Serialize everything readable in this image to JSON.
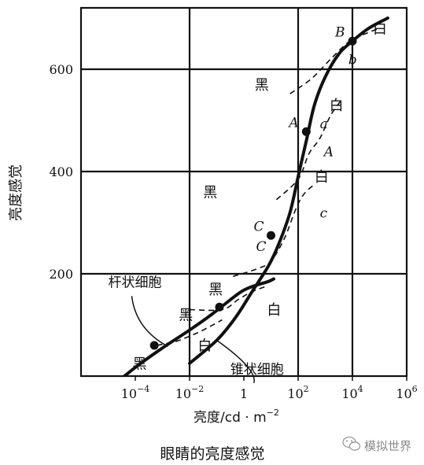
{
  "chart_data": {
    "type": "line",
    "title": "",
    "xlabel": "亮度/cd · m",
    "xlabel_exponent": "−2",
    "ylabel": "亮度感觉",
    "x_scale": "log10",
    "xlim_log10": [
      -6,
      6
    ],
    "ylim": [
      0,
      720
    ],
    "grid": true,
    "x_ticks": [
      {
        "log10": -4,
        "base": "10",
        "exp": "−4"
      },
      {
        "log10": -2,
        "base": "10",
        "exp": "−2"
      },
      {
        "log10": 0,
        "label": "1"
      },
      {
        "log10": 2,
        "base": "10",
        "exp": "2"
      },
      {
        "log10": 4,
        "base": "10",
        "exp": "4"
      },
      {
        "log10": 6,
        "base": "10",
        "exp": "6"
      }
    ],
    "y_ticks": [
      {
        "value": 200,
        "label": "200"
      },
      {
        "value": 400,
        "label": "400"
      },
      {
        "value": 600,
        "label": "600"
      }
    ],
    "series": [
      {
        "name": "杆状细胞",
        "style": "solid-thick",
        "points": [
          [
            -4.4,
            0
          ],
          [
            -3.8,
            25
          ],
          [
            -3.0,
            55
          ],
          [
            -2.0,
            90
          ],
          [
            -1.2,
            120
          ],
          [
            -0.6,
            145
          ],
          [
            -0.1,
            165
          ],
          [
            0.3,
            175
          ],
          [
            0.9,
            185
          ],
          [
            1.1,
            190
          ]
        ]
      },
      {
        "name": "锥状细胞",
        "style": "solid-thick",
        "points": [
          [
            -2.0,
            25
          ],
          [
            -1.0,
            70
          ],
          [
            -0.3,
            115
          ],
          [
            0.3,
            165
          ],
          [
            0.9,
            215
          ],
          [
            1.3,
            260
          ],
          [
            1.7,
            320
          ],
          [
            2.0,
            390
          ],
          [
            2.3,
            460
          ],
          [
            2.6,
            530
          ],
          [
            3.0,
            585
          ],
          [
            3.5,
            630
          ],
          [
            4.0,
            655
          ],
          [
            4.6,
            680
          ],
          [
            5.3,
            700
          ]
        ]
      },
      {
        "name": "",
        "style": "dashed",
        "points": [
          [
            -3.2,
            60
          ],
          [
            -2.5,
            68
          ],
          [
            -2.0,
            78
          ],
          [
            -1.5,
            90
          ],
          [
            -0.8,
            110
          ]
        ]
      },
      {
        "name": "",
        "style": "dashed",
        "points": [
          [
            -2.0,
            130
          ],
          [
            -0.8,
            130
          ],
          [
            -0.2,
            150
          ],
          [
            0.3,
            165
          ],
          [
            0.8,
            175
          ]
        ]
      },
      {
        "name": "",
        "style": "dashed",
        "points": [
          [
            -0.4,
            195
          ],
          [
            0.5,
            210
          ],
          [
            1.0,
            225
          ],
          [
            1.5,
            270
          ],
          [
            1.9,
            325
          ],
          [
            2.2,
            355
          ],
          [
            2.6,
            375
          ]
        ]
      },
      {
        "name": "",
        "style": "dashed",
        "points": [
          [
            1.2,
            345
          ],
          [
            2.0,
            385
          ],
          [
            2.4,
            435
          ],
          [
            2.8,
            465
          ],
          [
            3.2,
            510
          ],
          [
            3.6,
            540
          ]
        ]
      },
      {
        "name": "",
        "style": "dashed",
        "points": [
          [
            1.7,
            552
          ],
          [
            2.5,
            582
          ],
          [
            3.2,
            620
          ],
          [
            3.9,
            655
          ],
          [
            4.6,
            672
          ],
          [
            5.0,
            680
          ]
        ]
      }
    ],
    "points": [
      {
        "label": "B",
        "x_log10": 4.0,
        "y": 655
      },
      {
        "label": "A",
        "x_log10": 2.3,
        "y": 478
      },
      {
        "label": "C",
        "x_log10": 1.0,
        "y": 275
      },
      {
        "label": "",
        "x_log10": -0.9,
        "y": 135
      },
      {
        "label": "",
        "x_log10": -3.3,
        "y": 60
      }
    ],
    "annotations": [
      {
        "text": "白",
        "x_log10": 4.75,
        "y": 670
      },
      {
        "text": "b",
        "x_log10": 3.85,
        "y": 610,
        "italic": true
      },
      {
        "text": "黑",
        "x_log10": 0.4,
        "y": 560
      },
      {
        "text": "白",
        "x_log10": 3.15,
        "y": 520
      },
      {
        "text": "a",
        "x_log10": 2.8,
        "y": 485,
        "italic": true
      },
      {
        "text": "A",
        "x_log10": 2.95,
        "y": 430,
        "italic": true
      },
      {
        "text": "黑",
        "x_log10": -1.5,
        "y": 350
      },
      {
        "text": "白",
        "x_log10": 2.6,
        "y": 380
      },
      {
        "text": "c",
        "x_log10": 2.8,
        "y": 310,
        "italic": true
      },
      {
        "text": "C",
        "x_log10": 0.45,
        "y": 245,
        "italic": true
      },
      {
        "text": "黑",
        "x_log10": -1.3,
        "y": 160
      },
      {
        "text": "白",
        "x_log10": 0.85,
        "y": 120
      },
      {
        "text": "黑",
        "x_log10": -2.4,
        "y": 110
      },
      {
        "text": "白",
        "x_log10": -1.7,
        "y": 50
      },
      {
        "text": "黑",
        "x_log10": -4.1,
        "y": 15
      }
    ],
    "callouts": [
      {
        "text": "杆状细胞",
        "text_x_log10": -5.0,
        "text_y": 175,
        "target_x_log10": -2.8,
        "target_y": 58
      },
      {
        "text": "锥状细胞",
        "text_x_log10": -0.5,
        "text_y": 5,
        "target_x_log10": -1.0,
        "target_y": 70
      }
    ]
  },
  "caption": "眼睛的亮度感觉",
  "watermark": "模拟世界"
}
